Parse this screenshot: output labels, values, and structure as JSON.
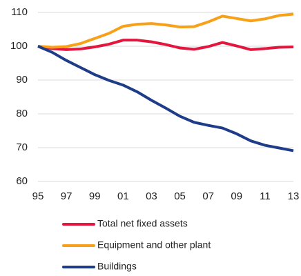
{
  "chart_data": {
    "type": "line",
    "categories": [
      "95",
      null,
      "97",
      null,
      "99",
      null,
      "01",
      null,
      "03",
      null,
      "05",
      null,
      "07",
      null,
      "09",
      null,
      "11",
      null,
      "13"
    ],
    "series": [
      {
        "name": "Total net fixed assets",
        "color": "#e3173e",
        "values": [
          100,
          99.3,
          99,
          99.2,
          99.8,
          100.6,
          101.8,
          101.8,
          101.3,
          100.5,
          99.5,
          99.1,
          99.9,
          101.1,
          100.1,
          99.0,
          99.3,
          99.7,
          99.8
        ]
      },
      {
        "name": "Equipment and other plant",
        "color": "#f7a11a",
        "values": [
          100,
          99.7,
          99.9,
          100.8,
          102.3,
          103.8,
          105.9,
          106.5,
          106.7,
          106.3,
          105.7,
          105.8,
          107.2,
          108.9,
          108.2,
          107.5,
          108.1,
          109.1,
          109.5
        ]
      },
      {
        "name": "Buildings",
        "color": "#1f3c88",
        "values": [
          100,
          98.2,
          95.8,
          93.7,
          91.6,
          89.9,
          88.5,
          86.5,
          84.0,
          81.7,
          79.3,
          77.5,
          76.6,
          75.8,
          74.1,
          72.0,
          70.7,
          69.9,
          69.1
        ]
      }
    ],
    "ylim": [
      60,
      110
    ],
    "yticks": [
      60,
      70,
      80,
      90,
      100,
      110
    ],
    "grid": true
  }
}
